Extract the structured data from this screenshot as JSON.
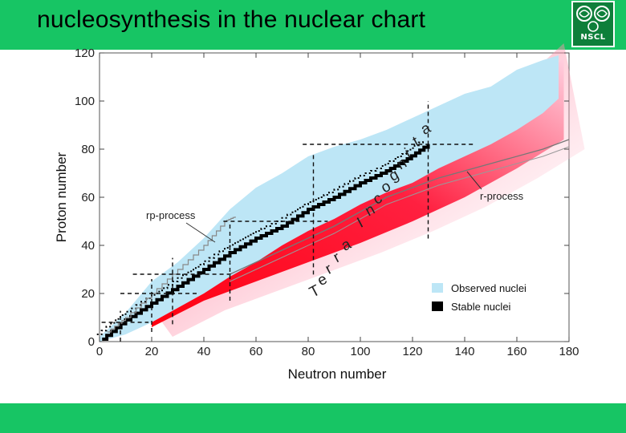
{
  "slide": {
    "title": "nucleosynthesis in the nuclear chart",
    "logo_text": "NSCL",
    "header_color": "#17c564",
    "logo_color": "#0e7f3a",
    "logo_icon": "nscl-swirl-logo"
  },
  "chart_data": {
    "type": "nuclear-chart",
    "xlabel": "Neutron number",
    "ylabel": "Proton number",
    "xlim": [
      0,
      180
    ],
    "ylim": [
      0,
      120
    ],
    "xticks": [
      0,
      20,
      40,
      60,
      80,
      100,
      120,
      140,
      160,
      180
    ],
    "yticks": [
      0,
      20,
      40,
      60,
      80,
      100,
      120
    ],
    "legend": [
      {
        "label": "Observed nuclei",
        "color": "#bde6f6"
      },
      {
        "label": "Stable nuclei",
        "color": "#000000"
      }
    ],
    "legend_position": "bottom-right",
    "annotations": {
      "rp_process": "rp-process",
      "r_process": "r-process",
      "terra_incognita": "Terra Incognita"
    },
    "colors": {
      "observed": "#bde6f6",
      "stable": "#000000",
      "terra_incognita": "#ff1020",
      "terra_incognita_fade": "#ffd0e0"
    },
    "observed_upper": [
      [
        0,
        2
      ],
      [
        10,
        12
      ],
      [
        20,
        25
      ],
      [
        30,
        33
      ],
      [
        40,
        43
      ],
      [
        50,
        55
      ],
      [
        60,
        64
      ],
      [
        70,
        70
      ],
      [
        80,
        77
      ],
      [
        90,
        81
      ],
      [
        100,
        84
      ],
      [
        110,
        88
      ],
      [
        120,
        93
      ],
      [
        130,
        98
      ],
      [
        140,
        103
      ],
      [
        150,
        106
      ],
      [
        160,
        113
      ],
      [
        170,
        117
      ],
      [
        176,
        119
      ]
    ],
    "observed_lower": [
      [
        0,
        0
      ],
      [
        10,
        3
      ],
      [
        20,
        8
      ],
      [
        30,
        14
      ],
      [
        40,
        20
      ],
      [
        50,
        27
      ],
      [
        60,
        33
      ],
      [
        70,
        40
      ],
      [
        80,
        46
      ],
      [
        90,
        51
      ],
      [
        100,
        57
      ],
      [
        110,
        62
      ],
      [
        120,
        66
      ],
      [
        130,
        72
      ],
      [
        140,
        77
      ],
      [
        150,
        82
      ],
      [
        160,
        88
      ],
      [
        170,
        95
      ],
      [
        176,
        101
      ]
    ],
    "stable_valley": [
      [
        1,
        1
      ],
      [
        10,
        9
      ],
      [
        20,
        16
      ],
      [
        30,
        23
      ],
      [
        40,
        30
      ],
      [
        50,
        37
      ],
      [
        60,
        43
      ],
      [
        70,
        48
      ],
      [
        80,
        55
      ],
      [
        90,
        60
      ],
      [
        100,
        66
      ],
      [
        110,
        71
      ],
      [
        118,
        76
      ],
      [
        126,
        82
      ]
    ],
    "terra_band_upper": [
      [
        20,
        8
      ],
      [
        40,
        22
      ],
      [
        60,
        34
      ],
      [
        80,
        47
      ],
      [
        100,
        58
      ],
      [
        120,
        67
      ],
      [
        135,
        78
      ],
      [
        150,
        88
      ],
      [
        165,
        105
      ],
      [
        178,
        118
      ]
    ],
    "terra_band_lower": [
      [
        20,
        6
      ],
      [
        40,
        17
      ],
      [
        60,
        25
      ],
      [
        80,
        33
      ],
      [
        100,
        41
      ],
      [
        120,
        50
      ],
      [
        140,
        60
      ],
      [
        160,
        72
      ],
      [
        178,
        84
      ]
    ],
    "rp_process_path": [
      [
        3,
        4
      ],
      [
        10,
        10
      ],
      [
        20,
        20
      ],
      [
        30,
        30
      ],
      [
        40,
        40
      ],
      [
        48,
        50
      ],
      [
        52,
        52
      ]
    ],
    "r_process_path": [
      [
        50,
        28
      ],
      [
        70,
        38
      ],
      [
        90,
        48
      ],
      [
        110,
        60
      ],
      [
        130,
        68
      ],
      [
        150,
        74
      ],
      [
        170,
        80
      ],
      [
        180,
        84
      ]
    ],
    "magic_numbers": [
      8,
      20,
      28,
      50,
      82,
      126
    ]
  }
}
